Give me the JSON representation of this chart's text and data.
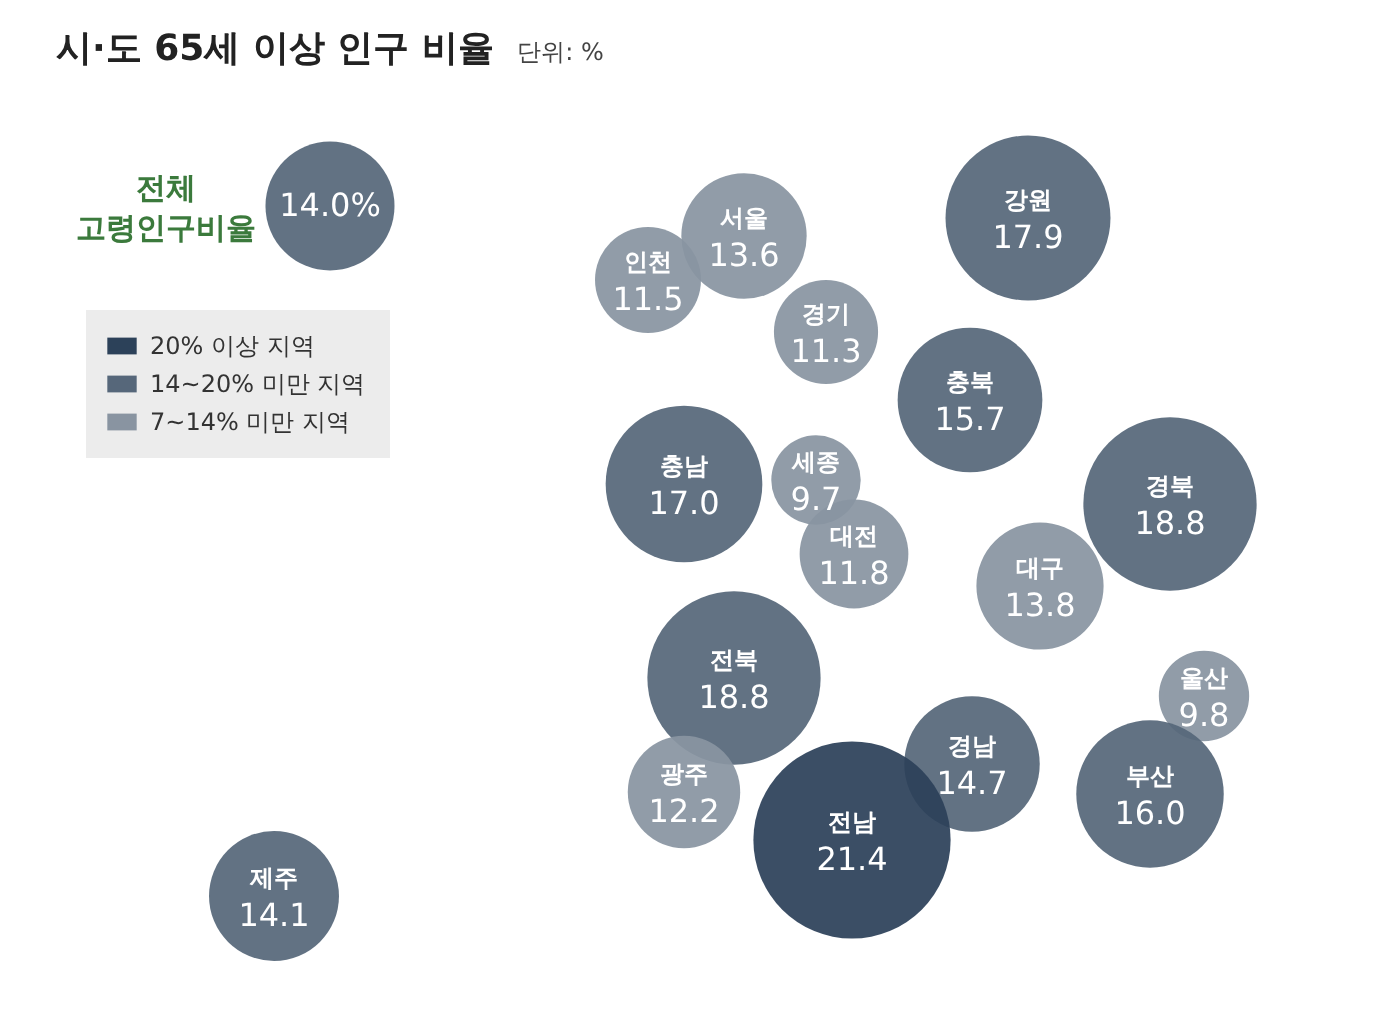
{
  "chart_data": {
    "type": "other",
    "title": "시·도 65세 이상 인구 비율",
    "subtitle": "단위: %",
    "categories": [
      "전체 고령인구비율",
      "서울",
      "인천",
      "경기",
      "강원",
      "충북",
      "충남",
      "세종",
      "대전",
      "경북",
      "대구",
      "전북",
      "울산",
      "광주",
      "경남",
      "부산",
      "전남",
      "제주"
    ],
    "series": [
      {
        "name": "20% 이상 지역",
        "color": "#2c4159",
        "values": [
          null,
          null,
          null,
          null,
          null,
          null,
          null,
          null,
          null,
          null,
          null,
          null,
          null,
          null,
          null,
          null,
          21.4,
          null
        ],
        "value_labels": [
          null,
          null,
          null,
          null,
          null,
          null,
          null,
          null,
          null,
          null,
          null,
          null,
          null,
          null,
          null,
          null,
          "21.4",
          null
        ]
      },
      {
        "name": "14~20% 미만 지역",
        "color": "#56677a",
        "values": [
          14.0,
          null,
          null,
          null,
          17.9,
          15.7,
          17.0,
          null,
          null,
          18.8,
          null,
          18.8,
          null,
          null,
          14.7,
          16.0,
          null,
          14.1
        ],
        "value_labels": [
          "14.0%",
          null,
          null,
          null,
          "17.9",
          "15.7",
          "17.0",
          null,
          null,
          "18.8",
          null,
          "18.8",
          null,
          null,
          "14.7",
          "16.0",
          null,
          "14.1"
        ]
      },
      {
        "name": "7~14% 미만 지역",
        "color": "#8994a1",
        "values": [
          null,
          13.6,
          11.5,
          11.3,
          null,
          null,
          null,
          9.7,
          11.8,
          null,
          13.8,
          null,
          9.8,
          12.2,
          null,
          null,
          null,
          null
        ],
        "value_labels": [
          null,
          "13.6",
          "11.5",
          "11.3",
          null,
          null,
          null,
          "9.7",
          "11.8",
          null,
          "13.8",
          null,
          "9.8",
          "12.2",
          null,
          null,
          null,
          null
        ]
      }
    ],
    "legend": "top left"
  }
}
